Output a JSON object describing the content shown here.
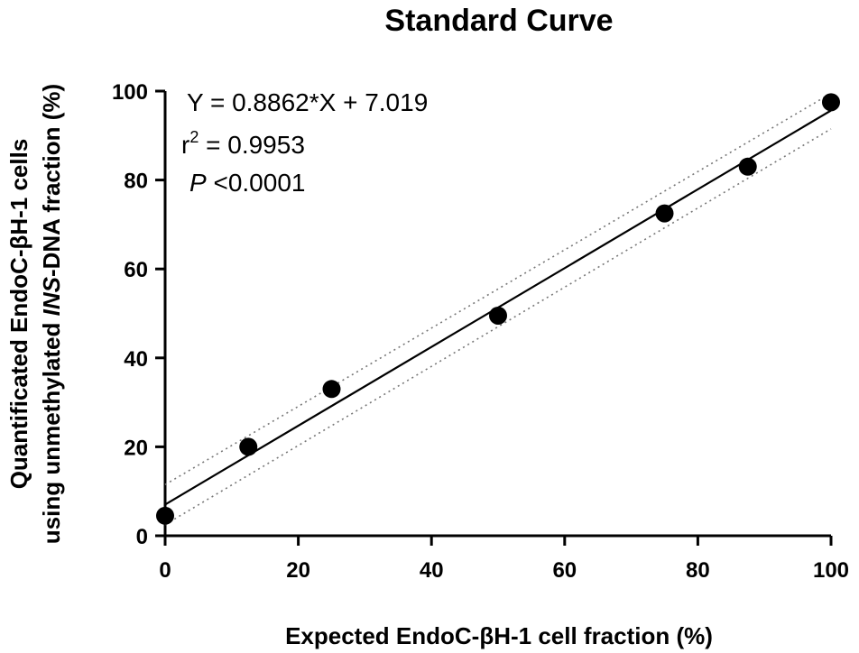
{
  "chart_data": {
    "type": "scatter",
    "title": "Standard Curve",
    "xlabel": "Expected EndoC-βH-1 cell fraction (%)",
    "ylabel_line1": "Quantificated EndoC-βH-1 cells",
    "ylabel_line2_pre": "using unmethylated ",
    "ylabel_line2_italic": "INS",
    "ylabel_line2_post": "-DNA fraction (%)",
    "xlim": [
      0,
      100
    ],
    "ylim": [
      0,
      100
    ],
    "xticks": [
      0,
      20,
      40,
      60,
      80,
      100
    ],
    "yticks": [
      0,
      20,
      40,
      60,
      80,
      100
    ],
    "points": [
      {
        "x": 0,
        "y": 4.5
      },
      {
        "x": 12.5,
        "y": 20
      },
      {
        "x": 25,
        "y": 33
      },
      {
        "x": 50,
        "y": 49.5
      },
      {
        "x": 75,
        "y": 72.5
      },
      {
        "x": 87.5,
        "y": 83
      },
      {
        "x": 100,
        "y": 97.5
      }
    ],
    "fit": {
      "slope": 0.8862,
      "intercept": 7.019
    },
    "confidence_band": {
      "upper": [
        {
          "x": 0,
          "y": 11.5
        },
        {
          "x": 100,
          "y": 99.5
        }
      ],
      "lower": [
        {
          "x": 0,
          "y": 2.5
        },
        {
          "x": 100,
          "y": 91.5
        }
      ]
    },
    "annotations": {
      "equation": "Y = 0.8862*X + 7.019",
      "r2_base": "r",
      "r2_exp": "2",
      "r2_value": " = 0.9953",
      "p_symbol": "P",
      "p_value": " <0.0001"
    },
    "grid": false,
    "legend": "none"
  }
}
